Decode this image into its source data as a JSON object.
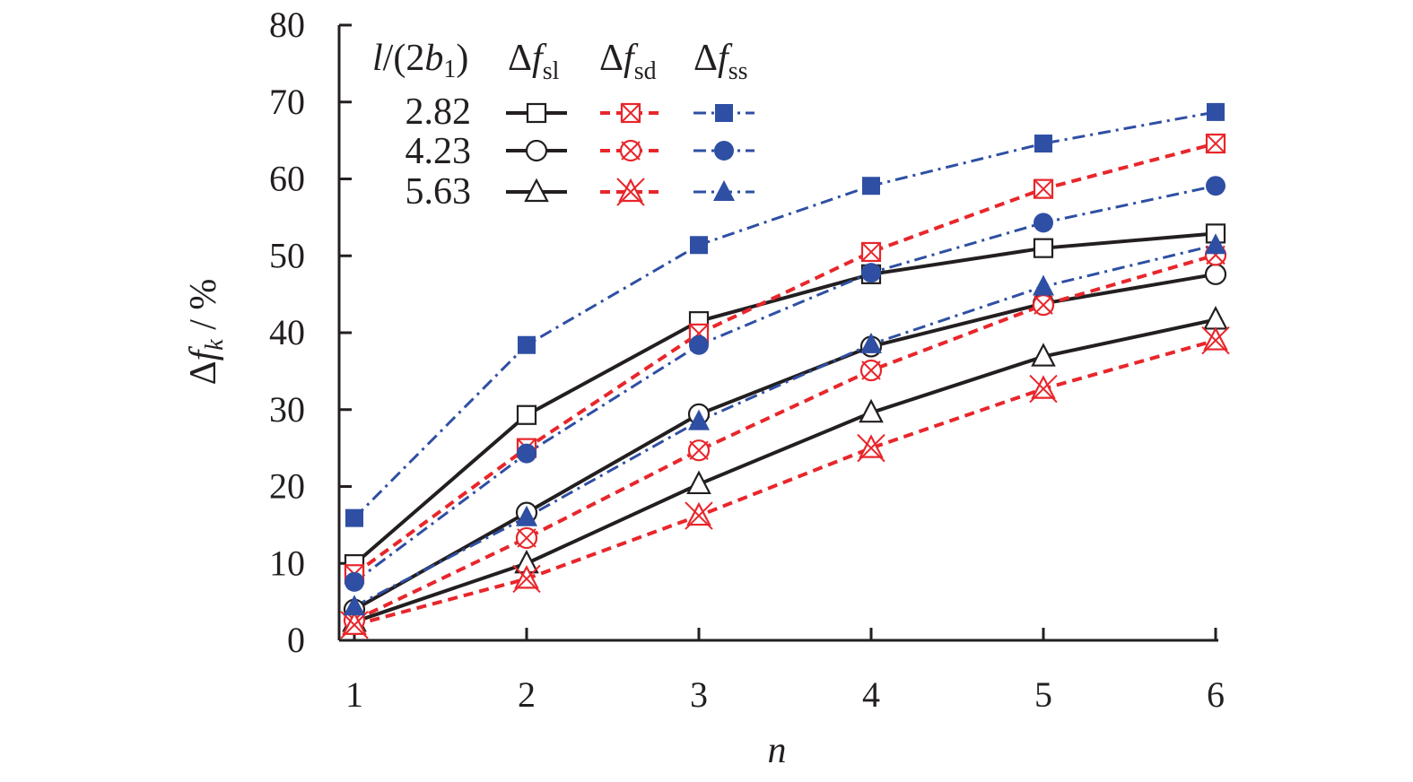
{
  "chart_data": {
    "type": "line",
    "title": "",
    "xlabel": "n",
    "ylabel": {
      "delta": "Δ",
      "f": "f",
      "sub": "k",
      "unit": " / %"
    },
    "x": [
      1,
      2,
      3,
      4,
      5,
      6
    ],
    "xlim": [
      1,
      6
    ],
    "ylim": [
      0,
      80
    ],
    "xticks": [
      "1",
      "2",
      "3",
      "4",
      "5",
      "6"
    ],
    "yticks": [
      "0",
      "10",
      "20",
      "30",
      "40",
      "50",
      "60",
      "70",
      "80"
    ],
    "grid": false,
    "legend": {
      "placement": "top-left",
      "param_header": {
        "l": "l",
        "mid": "/(2",
        "b": "b",
        "sub": "1",
        "close": ")"
      },
      "columns": [
        {
          "delta": "Δ",
          "f": "f",
          "sub": "sl"
        },
        {
          "delta": "Δ",
          "f": "f",
          "sub": "sd"
        },
        {
          "delta": "Δ",
          "f": "f",
          "sub": "ss"
        }
      ],
      "rows": [
        "2.82",
        "4.23",
        "5.63"
      ]
    },
    "colors": {
      "sl": "#231f20",
      "sd": "#e8262b",
      "ss": "#2e4fa3"
    },
    "series": [
      {
        "name": "Δf_sl, l/(2b1)=2.82",
        "group": "sl",
        "marker": "square",
        "values": [
          9.9,
          29.3,
          41.5,
          47.6,
          51.0,
          52.9
        ]
      },
      {
        "name": "Δf_sl, l/(2b1)=4.23",
        "group": "sl",
        "marker": "circle",
        "values": [
          4.0,
          16.6,
          29.4,
          38.2,
          43.8,
          47.6
        ]
      },
      {
        "name": "Δf_sl, l/(2b1)=5.63",
        "group": "sl",
        "marker": "triangle",
        "values": [
          2.4,
          10.0,
          20.3,
          29.6,
          36.9,
          41.7
        ]
      },
      {
        "name": "Δf_sd, l/(2b1)=2.82",
        "group": "sd",
        "marker": "square",
        "values": [
          8.6,
          25.0,
          39.9,
          50.5,
          58.7,
          64.6
        ]
      },
      {
        "name": "Δf_sd, l/(2b1)=4.23",
        "group": "sd",
        "marker": "circle",
        "values": [
          2.6,
          13.3,
          24.7,
          35.1,
          43.6,
          50.1
        ]
      },
      {
        "name": "Δf_sd, l/(2b1)=5.63",
        "group": "sd",
        "marker": "triangle",
        "values": [
          2.0,
          8.0,
          16.2,
          25.0,
          32.7,
          39.0
        ]
      },
      {
        "name": "Δf_ss, l/(2b1)=2.82",
        "group": "ss",
        "marker": "square",
        "values": [
          15.9,
          38.4,
          51.4,
          59.1,
          64.6,
          68.7
        ]
      },
      {
        "name": "Δf_ss, l/(2b1)=4.23",
        "group": "ss",
        "marker": "circle",
        "values": [
          7.6,
          24.3,
          38.4,
          47.8,
          54.3,
          59.1
        ]
      },
      {
        "name": "Δf_ss, l/(2b1)=5.63",
        "group": "ss",
        "marker": "triangle",
        "values": [
          4.4,
          16.0,
          28.5,
          38.5,
          46.0,
          51.4
        ]
      }
    ]
  }
}
